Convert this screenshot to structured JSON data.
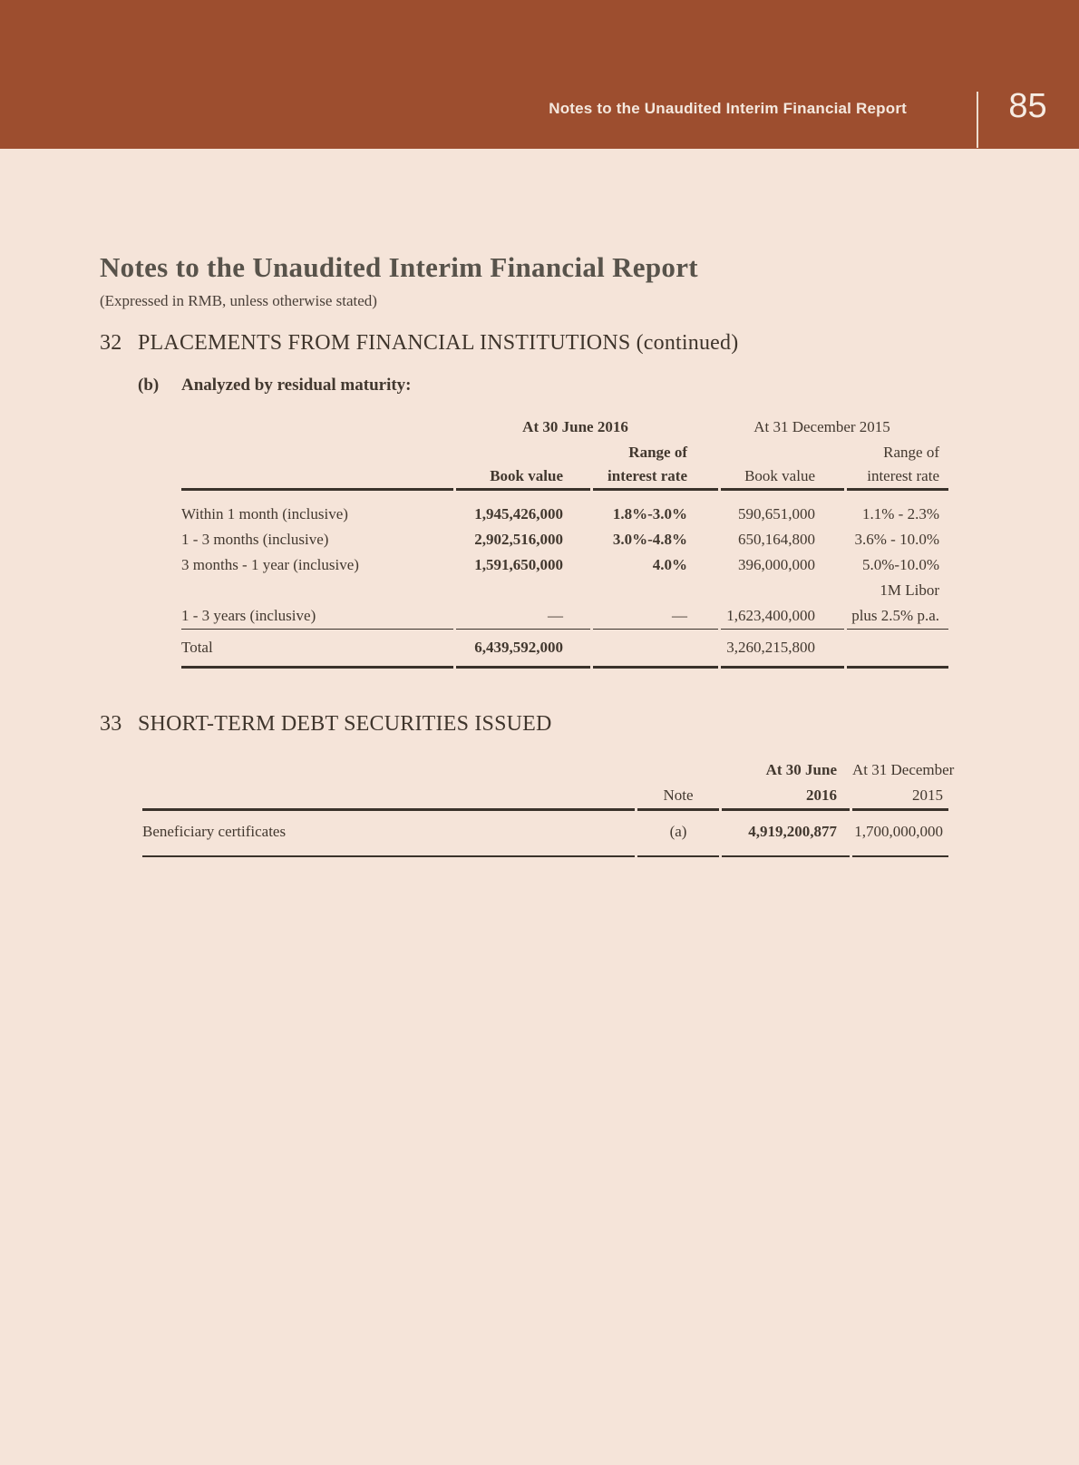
{
  "colors": {
    "band_red": "#9d4e2f",
    "page_background": "#f5e4d9",
    "band_text": "#f4e8de",
    "body_text": "#42382f",
    "rule": "#3a322b"
  },
  "header_band": {
    "title": "Notes to the Unaudited Interim Financial Report",
    "page_number": "85"
  },
  "doc": {
    "title": "Notes to the Unaudited Interim Financial Report",
    "subtitle": "(Expressed in RMB, unless otherwise stated)"
  },
  "s32": {
    "number": "32",
    "heading": "PLACEMENTS FROM FINANCIAL INSTITUTIONS (continued)",
    "sub": {
      "label": "(b)",
      "text": "Analyzed by residual maturity:"
    },
    "table": {
      "group_headers": [
        "At 30 June 2016",
        "At 31 December 2015"
      ],
      "col_headers": {
        "range_top": "Range of",
        "book_value": "Book value",
        "interest_rate": "interest rate"
      },
      "rows": [
        {
          "label": "Within 1 month (inclusive)",
          "bv2016": "1,945,426,000",
          "rate2016": "1.8%-3.0%",
          "bv2015": "590,651,000",
          "rate2015": "1.1% - 2.3%"
        },
        {
          "label": "1 - 3 months (inclusive)",
          "bv2016": "2,902,516,000",
          "rate2016": "3.0%-4.8%",
          "bv2015": "650,164,800",
          "rate2015": "3.6% - 10.0%"
        },
        {
          "label": "3 months - 1 year (inclusive)",
          "bv2016": "1,591,650,000",
          "rate2016": "4.0%",
          "bv2015": "396,000,000",
          "rate2015": "5.0%-10.0%"
        },
        {
          "label": "",
          "bv2016": "",
          "rate2016": "",
          "bv2015": "",
          "rate2015": "1M Libor"
        },
        {
          "label": "1 - 3 years (inclusive)",
          "bv2016": "—",
          "rate2016": "—",
          "bv2015": "1,623,400,000",
          "rate2015": "plus 2.5% p.a."
        }
      ],
      "total": {
        "label": "Total",
        "bv2016": "6,439,592,000",
        "bv2015": "3,260,215,800"
      }
    }
  },
  "s33": {
    "number": "33",
    "heading": "SHORT-TERM DEBT SECURITIES ISSUED",
    "table": {
      "headers": {
        "note": "Note",
        "p2016_line1": "At 30 June",
        "p2016_line2": "2016",
        "p2015_line1": "At 31 December",
        "p2015_line2": "2015"
      },
      "rows": [
        {
          "label": "Beneficiary certificates",
          "note": "(a)",
          "v2016": "4,919,200,877",
          "v2015": "1,700,000,000"
        }
      ]
    }
  }
}
